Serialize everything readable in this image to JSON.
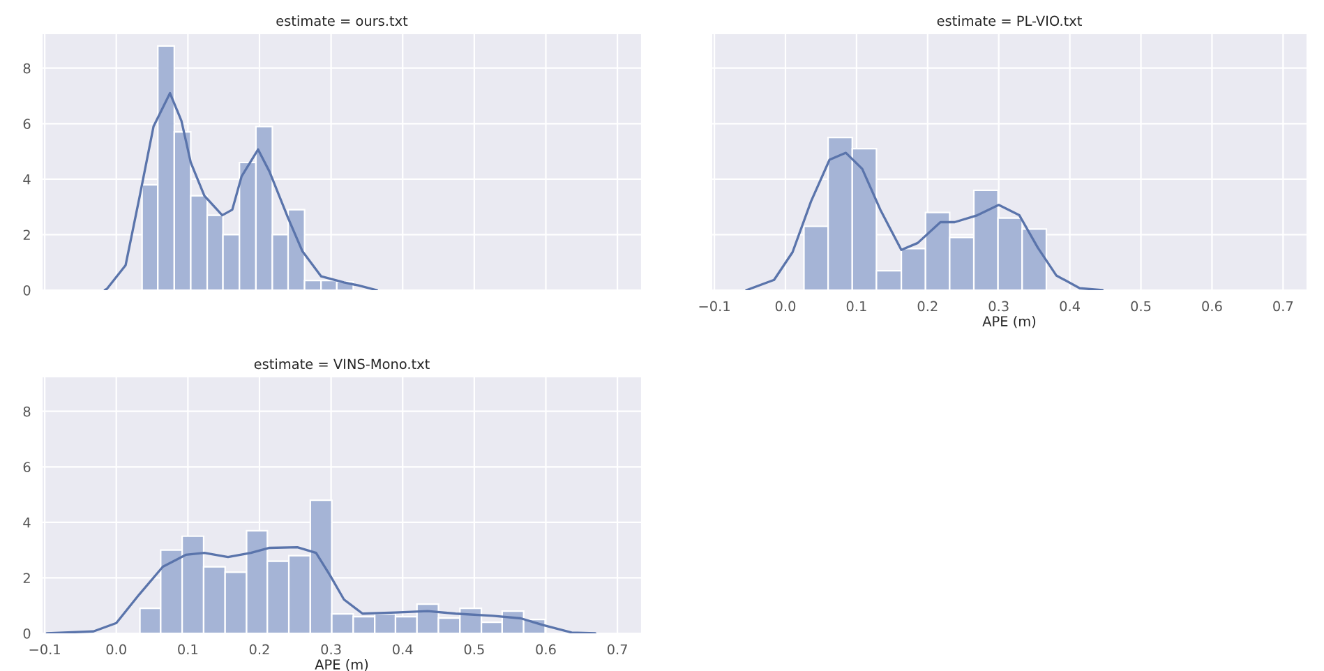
{
  "chart_data": [
    {
      "type": "histogram",
      "title": "estimate = ours.txt",
      "tick_labels": "y",
      "grid": true,
      "color": "#a5b4d6",
      "bins": [
        0.036,
        0.058,
        0.081,
        0.104,
        0.127,
        0.149,
        0.172,
        0.195,
        0.218,
        0.24,
        0.263,
        0.286,
        0.308,
        0.331
      ],
      "values": [
        3.8,
        8.8,
        5.7,
        3.4,
        2.7,
        2.0,
        4.6,
        5.9,
        2.0,
        2.9,
        0.35,
        0.35,
        0.3
      ],
      "series": [
        {
          "type": "line",
          "color": "#5a74ab",
          "x": [
            -0.016,
            -0.013,
            0.013,
            0.032,
            0.052,
            0.075,
            0.091,
            0.104,
            0.123,
            0.148,
            0.162,
            0.175,
            0.198,
            0.214,
            0.24,
            0.26,
            0.286,
            0.318,
            0.338,
            0.364
          ],
          "values": [
            0,
            0.05,
            0.9,
            3.3,
            5.9,
            7.1,
            6.1,
            4.6,
            3.4,
            2.7,
            2.9,
            4.1,
            5.07,
            4.27,
            2.6,
            1.4,
            0.5,
            0.28,
            0.17,
            0
          ]
        }
      ],
      "xlim": [
        -0.104,
        0.734
      ],
      "ylim": [
        0,
        9.25
      ],
      "xticks": [
        {
          "value": -0.1,
          "label": null
        },
        {
          "value": 0,
          "label": null
        },
        {
          "value": 0.1,
          "label": null
        },
        {
          "value": 0.2,
          "label": null
        },
        {
          "value": 0.3,
          "label": null
        },
        {
          "value": 0.4,
          "label": null
        },
        {
          "value": 0.5,
          "label": null
        },
        {
          "value": 0.6,
          "label": null
        },
        {
          "value": 0.7,
          "label": null
        }
      ],
      "yticks": [
        0,
        2,
        4,
        6,
        8
      ]
    },
    {
      "type": "histogram",
      "title": "estimate = PL-VIO.txt",
      "xlabel": "APE (m)",
      "tick_labels": "x",
      "grid": true,
      "color": "#a5b4d6",
      "bins": [
        0.026,
        0.06,
        0.094,
        0.128,
        0.163,
        0.197,
        0.231,
        0.265,
        0.299,
        0.333,
        0.367
      ],
      "values": [
        2.3,
        5.5,
        5.1,
        0.7,
        1.5,
        2.8,
        1.9,
        3.6,
        2.6,
        2.2
      ],
      "series": [
        {
          "type": "line",
          "color": "#5a74ab",
          "x": [
            -0.055,
            -0.016,
            0.01,
            0.036,
            0.062,
            0.085,
            0.108,
            0.134,
            0.163,
            0.186,
            0.218,
            0.238,
            0.27,
            0.3,
            0.329,
            0.355,
            0.381,
            0.414,
            0.446
          ],
          "values": [
            0,
            0.37,
            1.37,
            3.2,
            4.7,
            4.95,
            4.37,
            2.87,
            1.45,
            1.7,
            2.45,
            2.45,
            2.7,
            3.07,
            2.7,
            1.53,
            0.53,
            0.07,
            0
          ]
        }
      ],
      "xlim": [
        -0.104,
        0.734
      ],
      "ylim": [
        0,
        9.25
      ],
      "xticks": [
        {
          "value": -0.1,
          "label": "−0.1"
        },
        {
          "value": 0,
          "label": "0.0"
        },
        {
          "value": 0.1,
          "label": "0.1"
        },
        {
          "value": 0.2,
          "label": "0.2"
        },
        {
          "value": 0.3,
          "label": "0.3"
        },
        {
          "value": 0.4,
          "label": "0.4"
        },
        {
          "value": 0.5,
          "label": "0.5"
        },
        {
          "value": 0.6,
          "label": "0.6"
        },
        {
          "value": 0.7,
          "label": "0.7"
        }
      ],
      "yticks": [
        0,
        2,
        4,
        6,
        8
      ]
    },
    {
      "type": "histogram",
      "title": "estimate = VINS-Mono.txt",
      "xlabel": "APE (m)",
      "grid": true,
      "color": "#a5b4d6",
      "bins": [
        0.033,
        0.062,
        0.092,
        0.122,
        0.152,
        0.182,
        0.211,
        0.241,
        0.271,
        0.301,
        0.331,
        0.361,
        0.39,
        0.42,
        0.45,
        0.48,
        0.51,
        0.539,
        0.569,
        0.599
      ],
      "values": [
        0.9,
        3.0,
        3.5,
        2.4,
        2.2,
        3.7,
        2.6,
        2.8,
        4.8,
        0.7,
        0.6,
        0.7,
        0.6,
        1.05,
        0.55,
        0.9,
        0.4,
        0.8,
        0.5
      ],
      "series": [
        {
          "type": "line",
          "color": "#5a74ab",
          "x": [
            -0.097,
            -0.032,
            0,
            0.032,
            0.065,
            0.097,
            0.123,
            0.156,
            0.188,
            0.214,
            0.253,
            0.279,
            0.299,
            0.318,
            0.344,
            0.39,
            0.435,
            0.474,
            0.526,
            0.565,
            0.597,
            0.636,
            0.669
          ],
          "values": [
            0,
            0.07,
            0.37,
            1.4,
            2.4,
            2.83,
            2.9,
            2.75,
            2.9,
            3.08,
            3.1,
            2.9,
            2.07,
            1.22,
            0.71,
            0.75,
            0.8,
            0.71,
            0.63,
            0.54,
            0.29,
            0.03,
            0
          ]
        }
      ],
      "xlim": [
        -0.104,
        0.734
      ],
      "ylim": [
        0,
        9.25
      ],
      "xticks": [
        {
          "value": -0.1,
          "label": "−0.1"
        },
        {
          "value": 0,
          "label": "0.0"
        },
        {
          "value": 0.1,
          "label": "0.1"
        },
        {
          "value": 0.2,
          "label": "0.2"
        },
        {
          "value": 0.3,
          "label": "0.3"
        },
        {
          "value": 0.4,
          "label": "0.4"
        },
        {
          "value": 0.5,
          "label": "0.5"
        },
        {
          "value": 0.6,
          "label": "0.6"
        },
        {
          "value": 0.7,
          "label": "0.7"
        }
      ],
      "yticks": [
        0,
        2,
        4,
        6,
        8
      ]
    }
  ]
}
